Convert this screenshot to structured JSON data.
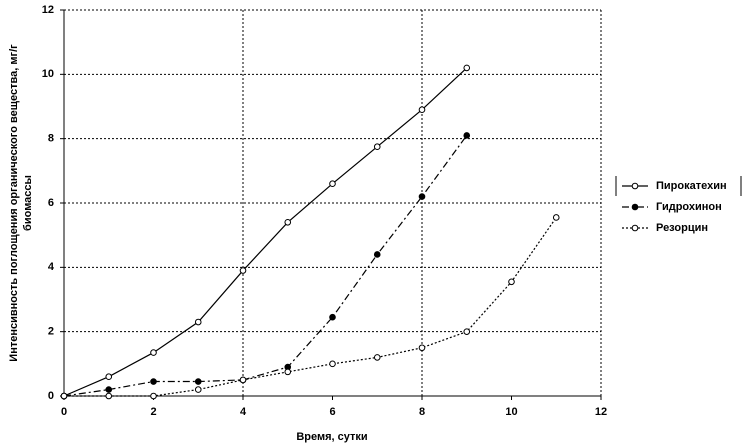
{
  "chart_data": {
    "type": "line",
    "xlabel": "Время, сутки",
    "ylabel": [
      "Интенсивность поглощения органического вещества, мг/г",
      "биомассы"
    ],
    "xlim": [
      0,
      12
    ],
    "xticks": [
      0,
      2,
      4,
      6,
      8,
      10,
      12
    ],
    "ylim": [
      0,
      12
    ],
    "yticks": [
      0,
      2,
      4,
      6,
      8,
      10,
      12
    ],
    "grid": true,
    "xgrid": [
      4,
      8,
      12
    ],
    "legend": "right",
    "series": [
      {
        "name": "Пирокатехин",
        "color": "#000000",
        "dash": "solid",
        "marker": "open",
        "x": [
          0,
          1,
          2,
          3,
          4,
          5,
          6,
          7,
          8,
          9
        ],
        "values": [
          0,
          0.6,
          1.35,
          2.3,
          3.9,
          5.4,
          6.6,
          7.75,
          8.9,
          10.2
        ]
      },
      {
        "name": "Гидрохинон",
        "color": "#000000",
        "dash": "dashdot",
        "marker": "filled",
        "x": [
          0,
          1,
          2,
          3,
          4,
          5,
          6,
          7,
          8,
          9
        ],
        "values": [
          0,
          0.2,
          0.45,
          0.45,
          0.5,
          0.9,
          2.45,
          4.4,
          6.2,
          8.1
        ]
      },
      {
        "name": "Резорцин",
        "color": "#000000",
        "dash": "dotted",
        "marker": "open",
        "x": [
          0,
          1,
          2,
          3,
          4,
          5,
          6,
          7,
          8,
          9,
          10,
          11
        ],
        "values": [
          0,
          0,
          0,
          0.2,
          0.5,
          0.75,
          1.0,
          1.2,
          1.5,
          2.0,
          3.55,
          5.55
        ]
      }
    ]
  }
}
